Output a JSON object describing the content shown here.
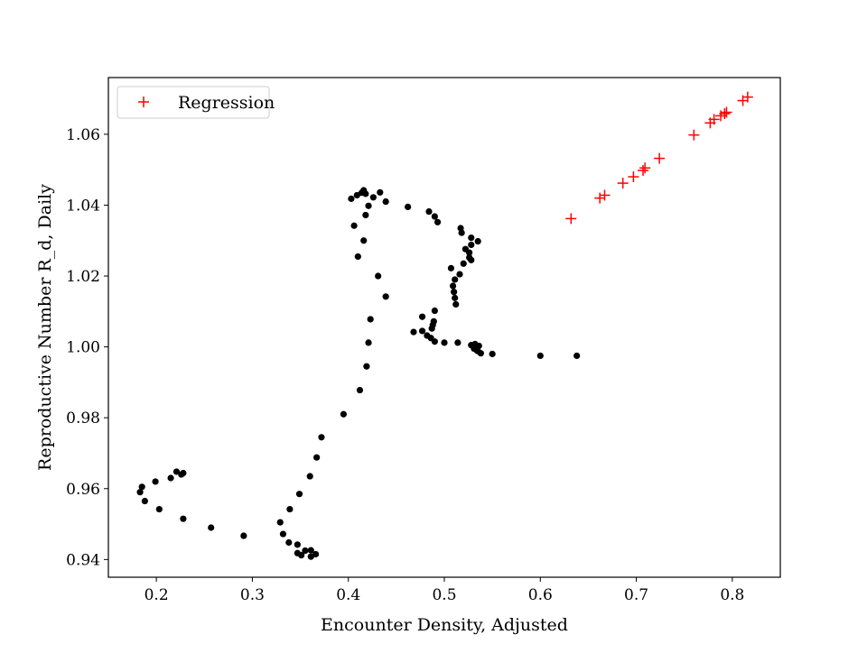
{
  "chart_data": {
    "type": "scatter",
    "title": "",
    "xlabel": "Encounter Density, Adjusted",
    "ylabel": "Reproductive Number R_d, Daily",
    "xlim": [
      0.15,
      0.85
    ],
    "ylim": [
      0.935,
      1.076
    ],
    "xticks": [
      0.2,
      0.3,
      0.4,
      0.5,
      0.6,
      0.7,
      0.8
    ],
    "xtick_labels": [
      "0.2",
      "0.3",
      "0.4",
      "0.5",
      "0.6",
      "0.7",
      "0.8"
    ],
    "yticks": [
      0.94,
      0.96,
      0.98,
      1.0,
      1.02,
      1.04,
      1.06
    ],
    "ytick_labels": [
      "0.94",
      "0.96",
      "0.98",
      "1.00",
      "1.02",
      "1.04",
      "1.06"
    ],
    "grid": false,
    "legend": {
      "position": "top-left",
      "entries": [
        {
          "label": "Regression",
          "series": "regression"
        }
      ]
    },
    "series": [
      {
        "id": "observed",
        "marker": "dot",
        "color": "#000000",
        "points": [
          [
            0.183,
            0.959
          ],
          [
            0.185,
            0.9605
          ],
          [
            0.188,
            0.9565
          ],
          [
            0.203,
            0.9542
          ],
          [
            0.199,
            0.962
          ],
          [
            0.215,
            0.963
          ],
          [
            0.221,
            0.9648
          ],
          [
            0.226,
            0.964
          ],
          [
            0.228,
            0.9644
          ],
          [
            0.228,
            0.9515
          ],
          [
            0.257,
            0.949
          ],
          [
            0.291,
            0.9467
          ],
          [
            0.329,
            0.9505
          ],
          [
            0.332,
            0.9472
          ],
          [
            0.338,
            0.9448
          ],
          [
            0.347,
            0.9442
          ],
          [
            0.347,
            0.9418
          ],
          [
            0.351,
            0.9412
          ],
          [
            0.355,
            0.9425
          ],
          [
            0.361,
            0.9408
          ],
          [
            0.361,
            0.9426
          ],
          [
            0.366,
            0.9415
          ],
          [
            0.339,
            0.9542
          ],
          [
            0.349,
            0.9585
          ],
          [
            0.36,
            0.9635
          ],
          [
            0.367,
            0.9688
          ],
          [
            0.372,
            0.9745
          ],
          [
            0.395,
            0.981
          ],
          [
            0.412,
            0.9878
          ],
          [
            0.419,
            0.9945
          ],
          [
            0.421,
            1.0012
          ],
          [
            0.423,
            1.0078
          ],
          [
            0.439,
            1.0142
          ],
          [
            0.431,
            1.02
          ],
          [
            0.41,
            1.0255
          ],
          [
            0.416,
            1.03
          ],
          [
            0.406,
            1.0342
          ],
          [
            0.418,
            1.0372
          ],
          [
            0.421,
            1.0398
          ],
          [
            0.403,
            1.0418
          ],
          [
            0.409,
            1.0428
          ],
          [
            0.414,
            1.0435
          ],
          [
            0.416,
            1.0442
          ],
          [
            0.418,
            1.0432
          ],
          [
            0.426,
            1.0422
          ],
          [
            0.433,
            1.0436
          ],
          [
            0.439,
            1.041
          ],
          [
            0.462,
            1.0395
          ],
          [
            0.484,
            1.0382
          ],
          [
            0.49,
            1.0368
          ],
          [
            0.493,
            1.0352
          ],
          [
            0.517,
            1.0335
          ],
          [
            0.518,
            1.0322
          ],
          [
            0.528,
            1.0308
          ],
          [
            0.535,
            1.0298
          ],
          [
            0.528,
            1.0288
          ],
          [
            0.522,
            1.0276
          ],
          [
            0.526,
            1.0266
          ],
          [
            0.526,
            1.0252
          ],
          [
            0.528,
            1.0245
          ],
          [
            0.52,
            1.0235
          ],
          [
            0.507,
            1.0222
          ],
          [
            0.516,
            1.0205
          ],
          [
            0.511,
            1.019
          ],
          [
            0.509,
            1.0172
          ],
          [
            0.51,
            1.0155
          ],
          [
            0.511,
            1.0138
          ],
          [
            0.512,
            1.012
          ],
          [
            0.49,
            1.0102
          ],
          [
            0.477,
            1.0085
          ],
          [
            0.489,
            1.0072
          ],
          [
            0.488,
            1.0062
          ],
          [
            0.487,
            1.0052
          ],
          [
            0.468,
            1.0042
          ],
          [
            0.477,
            1.0045
          ],
          [
            0.482,
            1.0032
          ],
          [
            0.486,
            1.0025
          ],
          [
            0.49,
            1.0015
          ],
          [
            0.5,
            1.0012
          ],
          [
            0.514,
            1.0012
          ],
          [
            0.528,
            1.0005
          ],
          [
            0.532,
            1.0008
          ],
          [
            0.536,
            1.0003
          ],
          [
            0.531,
            0.9995
          ],
          [
            0.535,
            0.9988
          ],
          [
            0.538,
            0.9982
          ],
          [
            0.534,
            0.999
          ],
          [
            0.55,
            0.998
          ],
          [
            0.6,
            0.9975
          ],
          [
            0.638,
            0.9975
          ]
        ]
      },
      {
        "id": "regression",
        "name": "Regression",
        "marker": "plus",
        "color": "#ff0000",
        "points": [
          [
            0.632,
            1.0362
          ],
          [
            0.662,
            1.042
          ],
          [
            0.667,
            1.0428
          ],
          [
            0.686,
            1.0462
          ],
          [
            0.697,
            1.048
          ],
          [
            0.707,
            1.0498
          ],
          [
            0.709,
            1.0505
          ],
          [
            0.724,
            1.0532
          ],
          [
            0.76,
            1.0598
          ],
          [
            0.777,
            1.0632
          ],
          [
            0.781,
            1.0642
          ],
          [
            0.788,
            1.0652
          ],
          [
            0.792,
            1.0658
          ],
          [
            0.794,
            1.0662
          ],
          [
            0.811,
            1.0695
          ],
          [
            0.816,
            1.0705
          ]
        ]
      }
    ]
  }
}
